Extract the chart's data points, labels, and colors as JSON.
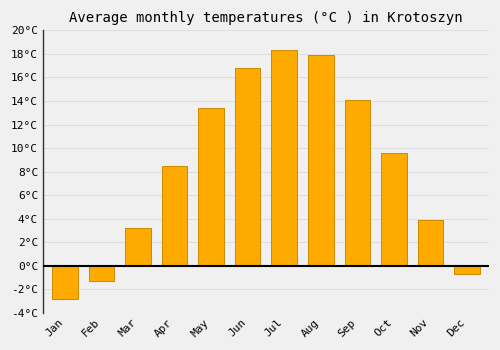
{
  "months": [
    "Jan",
    "Feb",
    "Mar",
    "Apr",
    "May",
    "Jun",
    "Jul",
    "Aug",
    "Sep",
    "Oct",
    "Nov",
    "Dec"
  ],
  "values": [
    -2.8,
    -1.3,
    3.2,
    8.5,
    13.4,
    16.8,
    18.3,
    17.9,
    14.1,
    9.6,
    3.9,
    -0.7
  ],
  "bar_color": "#FFAA00",
  "bar_edge_color": "#CC8800",
  "bar_edge_width": 0.7,
  "title": "Average monthly temperatures (°C ) in Krotoszyn",
  "title_fontsize": 10,
  "ylim": [
    -4,
    20
  ],
  "yticks": [
    -4,
    -2,
    0,
    2,
    4,
    6,
    8,
    10,
    12,
    14,
    16,
    18,
    20
  ],
  "ytick_labels": [
    "-4°C",
    "-2°C",
    "0°C",
    "2°C",
    "4°C",
    "6°C",
    "8°C",
    "10°C",
    "12°C",
    "14°C",
    "16°C",
    "18°C",
    "20°C"
  ],
  "background_color": "#F0F0F0",
  "grid_color": "#DDDDDD",
  "zero_line_color": "#000000",
  "font_family": "monospace",
  "title_font_family": "monospace",
  "tick_fontsize": 8,
  "bar_width": 0.7,
  "figwidth": 5.0,
  "figheight": 3.5,
  "dpi": 100
}
